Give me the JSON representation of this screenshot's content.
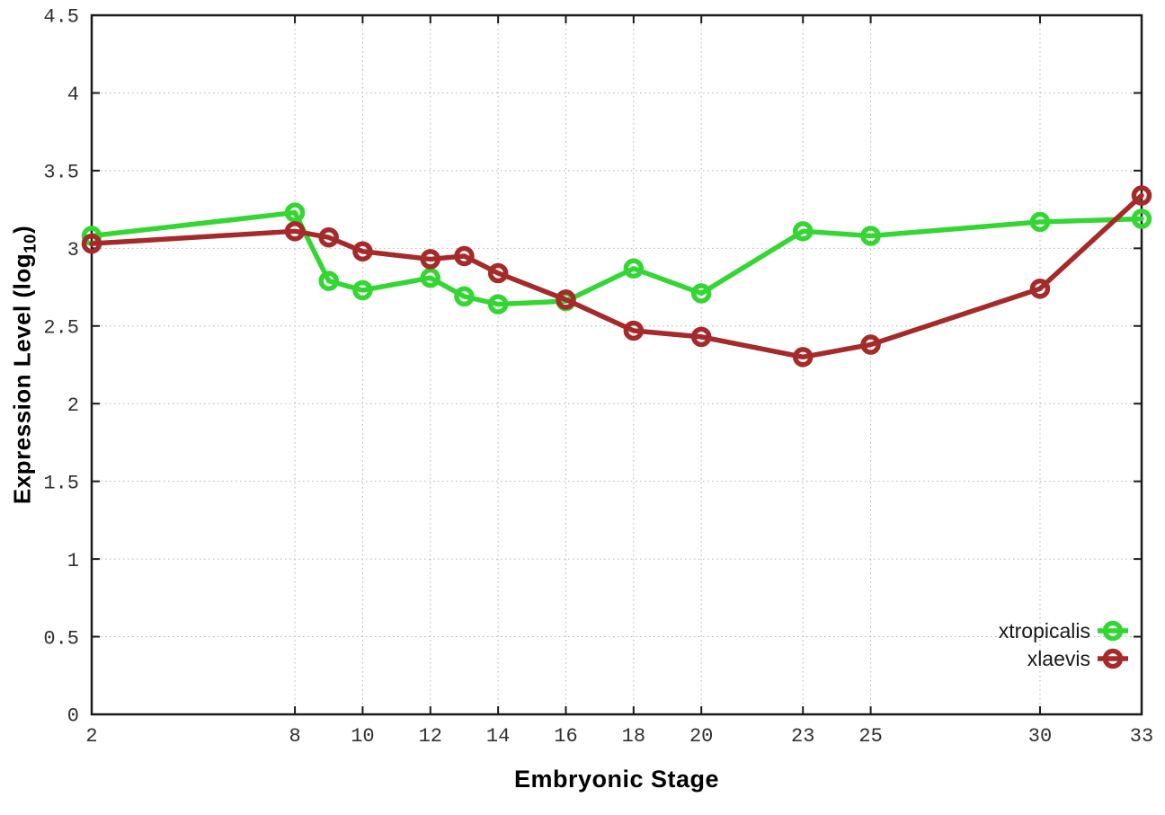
{
  "chart_data": {
    "type": "line",
    "title": "",
    "xlabel": "Embryonic Stage",
    "ylabel": "Expression Level (log10)",
    "ylabel_parts": {
      "pre": "Expression Level (log",
      "sub": "10",
      "post": ")"
    },
    "x": [
      2,
      8,
      9,
      10,
      12,
      13,
      14,
      16,
      18,
      20,
      23,
      25,
      30,
      33
    ],
    "series": [
      {
        "name": "xtropicalis",
        "color": "#33d633",
        "values": [
          3.08,
          3.23,
          2.79,
          2.73,
          2.81,
          2.69,
          2.64,
          2.66,
          2.87,
          2.71,
          3.11,
          3.08,
          3.17,
          3.19
        ]
      },
      {
        "name": "xlaevis",
        "color": "#a52a2a",
        "values": [
          3.03,
          3.11,
          3.07,
          2.98,
          2.93,
          2.95,
          2.84,
          2.67,
          2.47,
          2.43,
          2.3,
          2.38,
          2.74,
          3.34
        ]
      }
    ],
    "xlim": [
      2,
      33
    ],
    "ylim": [
      0,
      4.5
    ],
    "x_tick_values": [
      2,
      8,
      10,
      12,
      14,
      16,
      18,
      20,
      23,
      25,
      30,
      33
    ],
    "x_tick_labels": [
      "2",
      "8",
      "10",
      "12",
      "14",
      "16",
      "18",
      "20",
      "23",
      "25",
      "30",
      "33"
    ],
    "y_tick_values": [
      0,
      0.5,
      1,
      1.5,
      2,
      2.5,
      3,
      3.5,
      4,
      4.5
    ],
    "y_tick_labels": [
      "0",
      "0.5",
      "1",
      "1.5",
      "2",
      "2.5",
      "3",
      "3.5",
      "4",
      "4.5"
    ],
    "grid": true,
    "legend": {
      "position": "inside-bottom-right",
      "entries": [
        "xtropicalis",
        "xlaevis"
      ]
    },
    "colors": {
      "grid": "#b4b4b4",
      "axis": "#1a1a1a",
      "tick_text": "#303030",
      "legend_text": "#1a1a1a",
      "background": "#ffffff"
    }
  }
}
